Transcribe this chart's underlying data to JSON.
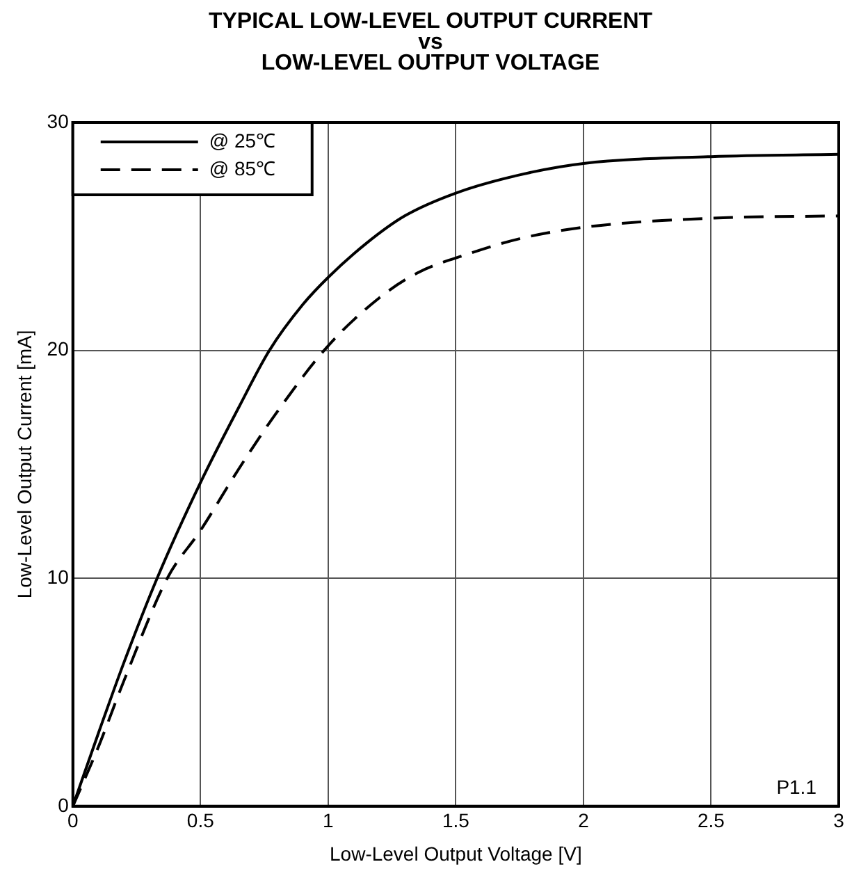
{
  "chart_data": {
    "type": "line",
    "title": "TYPICAL LOW-LEVEL OUTPUT CURRENT",
    "subtitle": "vs\nLOW-LEVEL OUTPUT VOLTAGE",
    "xlabel": "Low-Level Output Voltage [V]",
    "ylabel": "Low-Level Output Current [mA]",
    "xlim": [
      0,
      3
    ],
    "xticks": [
      0,
      0.5,
      1,
      1.5,
      2,
      2.5,
      3
    ],
    "ylim": [
      0,
      30
    ],
    "yticks": [
      0,
      10,
      20,
      30
    ],
    "grid": true,
    "legend": "top left",
    "marker": "none",
    "annotations": [
      "P1.1"
    ],
    "series": [
      {
        "name": "@ 25℃",
        "color": "#000000",
        "line_style": "solid",
        "x": [
          0,
          0.1,
          0.2,
          0.33,
          0.5,
          0.65,
          0.77,
          0.9,
          1,
          1.15,
          1.3,
          1.5,
          1.75,
          2,
          2.5,
          3
        ],
        "values": [
          0,
          3.2,
          6.3,
          10,
          14.2,
          17.5,
          20,
          22,
          23.2,
          24.7,
          25.9,
          26.9,
          27.7,
          28.2,
          28.5,
          28.6
        ]
      },
      {
        "name": "@ 85℃",
        "color": "#000000",
        "line_style": "dashed",
        "x": [
          0,
          0.1,
          0.2,
          0.37,
          0.5,
          0.65,
          0.8,
          1,
          1.2,
          1.35,
          1.54,
          1.75,
          2,
          2.5,
          3
        ],
        "values": [
          0,
          2.6,
          5.5,
          10,
          12.1,
          14.8,
          17.3,
          20.2,
          22.3,
          23.4,
          24.2,
          24.9,
          25.4,
          25.8,
          25.9
        ]
      }
    ]
  }
}
